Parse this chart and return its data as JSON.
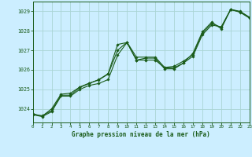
{
  "title": "Graphe pression niveau de la mer (hPa)",
  "background_color": "#cceeff",
  "grid_color": "#aad4d4",
  "line_color": "#1a5c1a",
  "marker_color": "#1a5c1a",
  "x_min": 0,
  "x_max": 23,
  "y_min": 1023.3,
  "y_max": 1029.5,
  "yticks": [
    1024,
    1025,
    1026,
    1027,
    1028,
    1029
  ],
  "xticks": [
    0,
    1,
    2,
    3,
    4,
    5,
    6,
    7,
    8,
    9,
    10,
    11,
    12,
    13,
    14,
    15,
    16,
    17,
    18,
    19,
    20,
    21,
    22,
    23
  ],
  "series": [
    [
      1023.7,
      1023.65,
      1023.9,
      1024.7,
      1024.7,
      1025.1,
      1025.3,
      1025.5,
      1025.8,
      1027.3,
      1027.4,
      1026.5,
      1026.5,
      1026.5,
      1026.1,
      1026.1,
      1026.35,
      1026.7,
      1027.8,
      1028.3,
      1028.2,
      1029.1,
      1029.0,
      1028.7
    ],
    [
      1023.7,
      1023.6,
      1023.85,
      1024.65,
      1024.65,
      1025.0,
      1025.2,
      1025.3,
      1025.5,
      1026.75,
      1027.4,
      1026.5,
      1026.6,
      1026.6,
      1026.05,
      1026.05,
      1026.35,
      1026.85,
      1027.95,
      1028.45,
      1028.1,
      1029.1,
      1028.95,
      1028.65
    ],
    [
      1023.75,
      1023.62,
      1024.0,
      1024.75,
      1024.8,
      1025.12,
      1025.32,
      1025.48,
      1025.78,
      1027.0,
      1027.42,
      1026.65,
      1026.65,
      1026.65,
      1026.12,
      1026.18,
      1026.45,
      1026.78,
      1027.88,
      1028.38,
      1028.18,
      1029.08,
      1028.98,
      1028.68
    ]
  ]
}
